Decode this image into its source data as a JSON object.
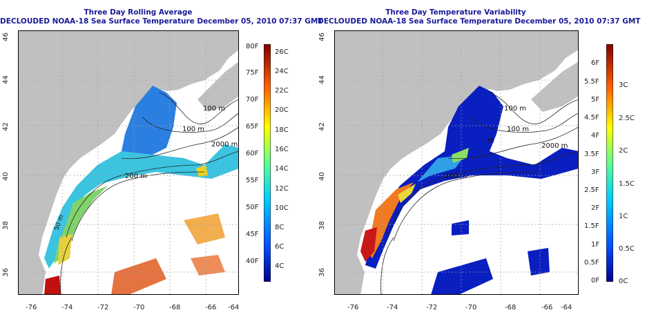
{
  "panels": [
    {
      "title1": "Three Day Rolling Average",
      "title2": "DECLOUDED NOAA-18 Sea Surface Temperature December 05, 2010 07:37 GMT",
      "contours": [
        "100 m",
        "100 m",
        "2000 m",
        "200 m",
        "50 m"
      ],
      "colorbar": {
        "left": [
          "80F",
          "75F",
          "70F",
          "65F",
          "60F",
          "55F",
          "50F",
          "45F",
          "40F"
        ],
        "right": [
          "26C",
          "24C",
          "22C",
          "20C",
          "18C",
          "16C",
          "14C",
          "12C",
          "10C",
          "8C",
          "6C",
          "4C"
        ]
      }
    },
    {
      "title1": "Three Day Temperature Variability",
      "title2": "DECLOUDED NOAA-18 Sea Surface Temperature December 05, 2010 07:37 GMT",
      "contours": [
        "100 m",
        "100 m",
        "2000 m",
        "200 m",
        "m"
      ],
      "colorbar": {
        "left": [
          "6F",
          "5.5F",
          "5F",
          "4.5F",
          "4F",
          "3.5F",
          "3F",
          "2.5F",
          "2F",
          "1.5F",
          "1F",
          "0.5F",
          "0F"
        ],
        "right": [
          "3C",
          "2.5C",
          "2C",
          "1.5C",
          "1C",
          "0.5C",
          "0C"
        ]
      }
    }
  ],
  "axes": {
    "lon_ticks": [
      "-76",
      "-74",
      "-72",
      "-70",
      "-68",
      "-66",
      "-64"
    ],
    "lat_ticks": [
      "46",
      "44",
      "42",
      "40",
      "38",
      "36"
    ]
  },
  "colors": {
    "land": "#c0c0c0",
    "title": "#1a1a9a",
    "grid": "#a0a0a0"
  }
}
